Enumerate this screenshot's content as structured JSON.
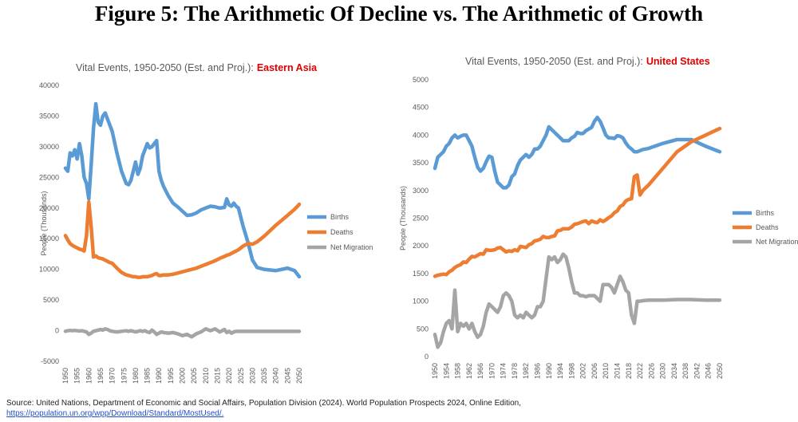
{
  "figure_title": "Figure 5: The Arithmetic Of Decline vs. The Arithmetic of Growth",
  "source": "Source: United Nations, Department of Economic and Social Affairs, Population Division (2024). World Population Prospects 2024, Online Edition,",
  "source_url": "https://population.un.org/wpp/Download/Standard/MostUsed/.",
  "chart_data": [
    {
      "type": "line",
      "title": "Vital Events, 1950-2050 (Est. and Proj.):",
      "title_highlight": "Eastern Asia",
      "y_label": "People (Thousands)",
      "xlim": [
        1950,
        2050
      ],
      "xticks": [
        1950,
        1955,
        1960,
        1965,
        1970,
        1975,
        1980,
        1985,
        1990,
        1995,
        2000,
        2005,
        2010,
        2015,
        2020,
        2025,
        2030,
        2035,
        2040,
        2045,
        2050
      ],
      "ylim": [
        -5000,
        40000
      ],
      "yticks": [
        -5000,
        0,
        5000,
        10000,
        15000,
        20000,
        25000,
        30000,
        35000,
        40000
      ],
      "grid": false,
      "legend": "right",
      "x": [
        1950,
        1951,
        1952,
        1953,
        1954,
        1955,
        1956,
        1957,
        1958,
        1959,
        1960,
        1961,
        1962,
        1963,
        1964,
        1965,
        1966,
        1967,
        1968,
        1969,
        1970,
        1972,
        1974,
        1976,
        1977,
        1978,
        1979,
        1980,
        1981,
        1982,
        1983,
        1984,
        1985,
        1986,
        1987,
        1988,
        1989,
        1990,
        1991,
        1992,
        1994,
        1996,
        1998,
        2000,
        2002,
        2004,
        2006,
        2008,
        2010,
        2012,
        2014,
        2016,
        2018,
        2019,
        2020,
        2021,
        2022,
        2023,
        2024,
        2026,
        2028,
        2030,
        2032,
        2035,
        2040,
        2045,
        2048,
        2050
      ],
      "series": [
        {
          "name": "Births",
          "color": "#5b9bd5",
          "values": [
            26500,
            26000,
            29000,
            28500,
            29500,
            28000,
            30500,
            28500,
            25000,
            24000,
            21500,
            27000,
            33000,
            37000,
            34000,
            33500,
            35000,
            35500,
            34500,
            33500,
            32500,
            29000,
            26000,
            24000,
            23800,
            24500,
            26000,
            27500,
            25500,
            26500,
            28500,
            29500,
            30500,
            29800,
            30000,
            30500,
            31000,
            26000,
            24500,
            23500,
            22000,
            20800,
            20200,
            19500,
            18800,
            18900,
            19200,
            19700,
            20000,
            20300,
            20200,
            20000,
            20100,
            21500,
            20500,
            20300,
            20800,
            20300,
            20000,
            17000,
            14500,
            11500,
            10300,
            10000,
            9800,
            10200,
            9800,
            8800
          ]
        },
        {
          "name": "Deaths",
          "color": "#ed7d31",
          "values": [
            15500,
            14800,
            14200,
            13900,
            13700,
            13500,
            13300,
            13200,
            13000,
            15500,
            21000,
            17000,
            12000,
            12200,
            11900,
            11800,
            11700,
            11500,
            11300,
            11100,
            11000,
            10200,
            9500,
            9100,
            9000,
            8900,
            8800,
            8800,
            8700,
            8700,
            8800,
            8800,
            8800,
            8900,
            9000,
            9200,
            9300,
            9000,
            9000,
            9100,
            9100,
            9200,
            9400,
            9600,
            9800,
            10000,
            10200,
            10500,
            10800,
            11100,
            11400,
            11800,
            12100,
            12300,
            12400,
            12600,
            12800,
            13000,
            13200,
            13800,
            14200,
            14100,
            14500,
            15400,
            17200,
            18800,
            19800,
            20600
          ]
        },
        {
          "name": "Net Migration",
          "color": "#a5a5a5",
          "values": [
            -100,
            0,
            50,
            0,
            50,
            0,
            -50,
            0,
            -100,
            -200,
            -600,
            -400,
            -100,
            0,
            100,
            200,
            100,
            300,
            200,
            0,
            -100,
            -200,
            -100,
            0,
            -100,
            0,
            -100,
            -200,
            -100,
            0,
            -100,
            0,
            -200,
            -300,
            100,
            -200,
            -600,
            -400,
            -200,
            -300,
            -400,
            -300,
            -500,
            -800,
            -600,
            -1000,
            -500,
            -200,
            300,
            0,
            300,
            -200,
            200,
            -300,
            -100,
            -400,
            -200,
            -100,
            -100,
            -100,
            -100,
            -100,
            -100,
            -100,
            -100,
            -100,
            -100,
            -100
          ]
        }
      ]
    },
    {
      "type": "line",
      "title": "Vital Events, 1950-2050 (Est. and Proj.):",
      "title_highlight": "United States",
      "y_label": "People (Thousands)",
      "xlim": [
        1950,
        2050
      ],
      "xticks": [
        1950,
        1954,
        1958,
        1962,
        1966,
        1970,
        1974,
        1978,
        1982,
        1986,
        1990,
        1994,
        1998,
        2002,
        2006,
        2010,
        2014,
        2018,
        2022,
        2026,
        2030,
        2034,
        2038,
        2042,
        2046,
        2050
      ],
      "ylim": [
        0,
        5000
      ],
      "yticks": [
        0,
        500,
        1000,
        1500,
        2000,
        2500,
        3000,
        3500,
        4000,
        4500,
        5000
      ],
      "grid": false,
      "legend": "right",
      "x": [
        1950,
        1951,
        1952,
        1953,
        1954,
        1955,
        1956,
        1957,
        1958,
        1959,
        1960,
        1961,
        1962,
        1963,
        1964,
        1965,
        1966,
        1967,
        1968,
        1969,
        1970,
        1971,
        1972,
        1973,
        1974,
        1975,
        1976,
        1977,
        1978,
        1979,
        1980,
        1981,
        1982,
        1983,
        1984,
        1985,
        1986,
        1987,
        1988,
        1989,
        1990,
        1991,
        1992,
        1993,
        1994,
        1995,
        1996,
        1997,
        1998,
        1999,
        2000,
        2001,
        2002,
        2003,
        2004,
        2005,
        2006,
        2007,
        2008,
        2009,
        2010,
        2011,
        2012,
        2013,
        2014,
        2015,
        2016,
        2017,
        2018,
        2019,
        2020,
        2021,
        2022,
        2023,
        2025,
        2030,
        2035,
        2040,
        2045,
        2050
      ],
      "series": [
        {
          "name": "Births",
          "color": "#5b9bd5",
          "values": [
            3400,
            3600,
            3650,
            3700,
            3800,
            3850,
            3950,
            4000,
            3950,
            3980,
            4000,
            4000,
            3900,
            3800,
            3600,
            3420,
            3350,
            3400,
            3520,
            3620,
            3600,
            3350,
            3150,
            3100,
            3050,
            3050,
            3100,
            3250,
            3300,
            3450,
            3550,
            3600,
            3650,
            3600,
            3650,
            3750,
            3750,
            3800,
            3900,
            4000,
            4150,
            4100,
            4050,
            4000,
            3950,
            3900,
            3900,
            3900,
            3950,
            3980,
            4050,
            4030,
            4030,
            4080,
            4110,
            4140,
            4250,
            4320,
            4250,
            4130,
            4000,
            3950,
            3950,
            3940,
            3990,
            3980,
            3950,
            3860,
            3790,
            3750,
            3700,
            3700,
            3720,
            3740,
            3760,
            3850,
            3920,
            3920,
            3800,
            3700
          ]
        },
        {
          "name": "Deaths",
          "color": "#ed7d31",
          "values": [
            1450,
            1470,
            1480,
            1490,
            1480,
            1530,
            1560,
            1610,
            1640,
            1660,
            1710,
            1700,
            1760,
            1810,
            1800,
            1830,
            1860,
            1850,
            1930,
            1920,
            1920,
            1930,
            1960,
            1970,
            1930,
            1890,
            1910,
            1900,
            1930,
            1910,
            1990,
            1980,
            1970,
            2020,
            2040,
            2090,
            2100,
            2120,
            2170,
            2150,
            2150,
            2170,
            2180,
            2270,
            2280,
            2310,
            2310,
            2310,
            2340,
            2390,
            2400,
            2420,
            2440,
            2450,
            2400,
            2450,
            2430,
            2420,
            2470,
            2440,
            2470,
            2510,
            2540,
            2600,
            2630,
            2710,
            2740,
            2810,
            2840,
            2850,
            3250,
            3280,
            2920,
            3000,
            3100,
            3400,
            3700,
            3880,
            4000,
            4120
          ]
        },
        {
          "name": "Net Migration",
          "color": "#a5a5a5",
          "values": [
            400,
            170,
            250,
            450,
            600,
            650,
            500,
            1200,
            450,
            600,
            550,
            600,
            500,
            600,
            450,
            350,
            400,
            550,
            800,
            950,
            900,
            850,
            800,
            900,
            1100,
            1150,
            1100,
            1000,
            750,
            700,
            750,
            700,
            800,
            750,
            700,
            750,
            900,
            900,
            1000,
            1400,
            1800,
            1750,
            1800,
            1700,
            1750,
            1850,
            1800,
            1600,
            1350,
            1150,
            1150,
            1100,
            1100,
            1080,
            1100,
            1100,
            1100,
            1050,
            1000,
            1300,
            1300,
            1300,
            1250,
            1150,
            1300,
            1450,
            1350,
            1200,
            1150,
            750,
            600,
            1000,
            1000,
            1010,
            1020,
            1020,
            1030,
            1030,
            1020,
            1020
          ]
        }
      ]
    }
  ]
}
